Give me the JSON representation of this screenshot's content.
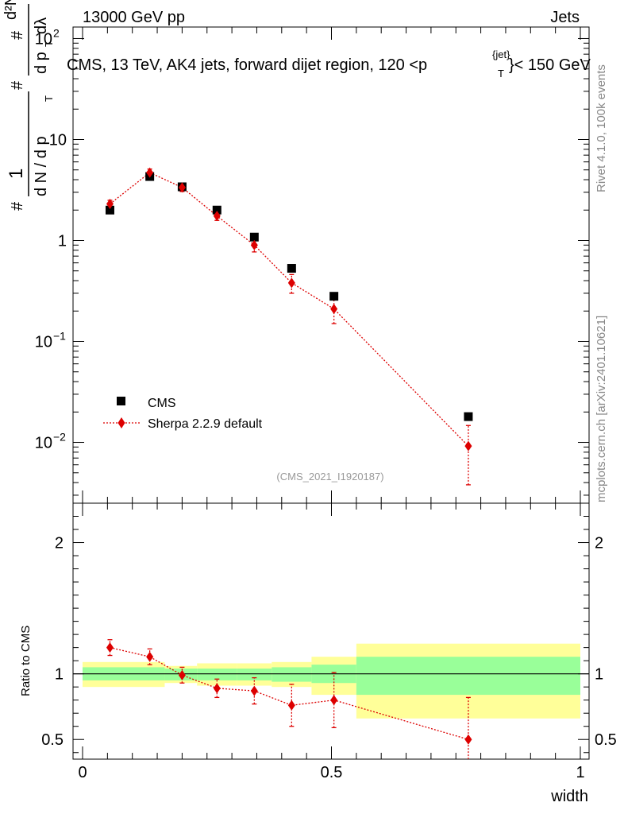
{
  "header": {
    "left": "13000 GeV pp",
    "right": "Jets"
  },
  "side_text": {
    "rivet": "Rivet 4.1.0,  100k events",
    "mcplots": "mcplots.cern.ch [arXiv:2401.10621]"
  },
  "analysis_tag": "(CMS_2021_I1920187)",
  "colors": {
    "data": "#000000",
    "mc": "#dd0000",
    "band_inner": "#99ff99",
    "band_outer": "#ffff99"
  },
  "chart_data": [
    {
      "type": "scatter",
      "title": "CMS, 13 TeV, AK4 jets, forward dijet region, 120 <p_T^{jet}> < 150 GeV",
      "title_parts": {
        "main": "CMS, 13 TeV, AK4 jets, forward dijet region, 120 <p",
        "sup": "{jet}",
        "sub": "T",
        "tail": "}< 150 GeV"
      },
      "ylabel": "1/(dN/dp_T) d²N/(dp_T dλ)",
      "ylabel_parts": {
        "hash": "#",
        "one": "1",
        "frac_den": "d N / d p",
        "T": "T",
        "num": "d²N",
        "den": "d p",
        "lam": "dλ"
      },
      "yscale": "log",
      "xlim": [
        0,
        1
      ],
      "ylim": [
        0.0025,
        130
      ],
      "yticks": [
        {
          "v": 100,
          "base": "10",
          "exp": "2"
        },
        {
          "v": 10,
          "base": "10",
          "exp": ""
        },
        {
          "v": 1,
          "base": "1",
          "exp": ""
        },
        {
          "v": 0.1,
          "base": "10",
          "exp": "−1"
        },
        {
          "v": 0.01,
          "base": "10",
          "exp": "−2"
        }
      ],
      "legend": [
        {
          "name": "CMS"
        },
        {
          "name": "Sherpa 2.2.9 default"
        }
      ],
      "series": [
        {
          "name": "CMS",
          "marker": "square",
          "x": [
            0.055,
            0.135,
            0.2,
            0.27,
            0.345,
            0.42,
            0.505,
            0.775
          ],
          "y": [
            2.0,
            4.3,
            3.4,
            2.0,
            1.08,
            0.53,
            0.28,
            0.018
          ]
        },
        {
          "name": "Sherpa 2.2.9 default",
          "marker": "diamond",
          "line": "dotted",
          "x": [
            0.055,
            0.135,
            0.2,
            0.27,
            0.345,
            0.42,
            0.505,
            0.775
          ],
          "y": [
            2.3,
            4.7,
            3.35,
            1.75,
            0.9,
            0.38,
            0.21,
            0.0092
          ],
          "err_lo": [
            0.2,
            0.4,
            0.3,
            0.17,
            0.13,
            0.08,
            0.06,
            0.0054
          ],
          "err_hi": [
            0.2,
            0.4,
            0.3,
            0.17,
            0.13,
            0.08,
            0.06,
            0.0055
          ]
        }
      ]
    },
    {
      "type": "scatter",
      "ylabel": "Ratio to CMS",
      "xlabel": "width",
      "xlim": [
        -0.02,
        1.0
      ],
      "ylim": [
        0.35,
        2.3
      ],
      "yticks": [
        {
          "v": 0.5,
          "label": "0.5"
        },
        {
          "v": 1,
          "label": "1"
        },
        {
          "v": 2,
          "label": "2"
        }
      ],
      "xticks": [
        {
          "v": 0,
          "label": "0"
        },
        {
          "v": 0.5,
          "label": "0.5"
        },
        {
          "v": 1,
          "label": "1"
        }
      ],
      "bands": [
        {
          "x0": 0.0,
          "x1": 0.165,
          "in_lo": 0.95,
          "in_hi": 1.05,
          "out_lo": 0.9,
          "out_hi": 1.09
        },
        {
          "x0": 0.165,
          "x1": 0.23,
          "in_lo": 0.95,
          "in_hi": 1.04,
          "out_lo": 0.93,
          "out_hi": 1.06
        },
        {
          "x0": 0.23,
          "x1": 0.31,
          "in_lo": 0.95,
          "in_hi": 1.04,
          "out_lo": 0.91,
          "out_hi": 1.08
        },
        {
          "x0": 0.31,
          "x1": 0.38,
          "in_lo": 0.95,
          "in_hi": 1.04,
          "out_lo": 0.91,
          "out_hi": 1.08
        },
        {
          "x0": 0.38,
          "x1": 0.46,
          "in_lo": 0.94,
          "in_hi": 1.05,
          "out_lo": 0.9,
          "out_hi": 1.09
        },
        {
          "x0": 0.46,
          "x1": 0.55,
          "in_lo": 0.93,
          "in_hi": 1.07,
          "out_lo": 0.84,
          "out_hi": 1.13
        },
        {
          "x0": 0.55,
          "x1": 1.0,
          "in_lo": 0.84,
          "in_hi": 1.13,
          "out_lo": 0.66,
          "out_hi": 1.23
        }
      ],
      "series": [
        {
          "name": "Sherpa 2.2.9 default",
          "x": [
            0.055,
            0.135,
            0.2,
            0.27,
            0.345,
            0.42,
            0.505,
            0.775
          ],
          "y": [
            1.2,
            1.13,
            0.99,
            0.89,
            0.87,
            0.76,
            0.8,
            0.5
          ],
          "err": [
            0.06,
            0.06,
            0.06,
            0.07,
            0.1,
            0.16,
            0.21,
            0.32
          ]
        }
      ]
    }
  ]
}
